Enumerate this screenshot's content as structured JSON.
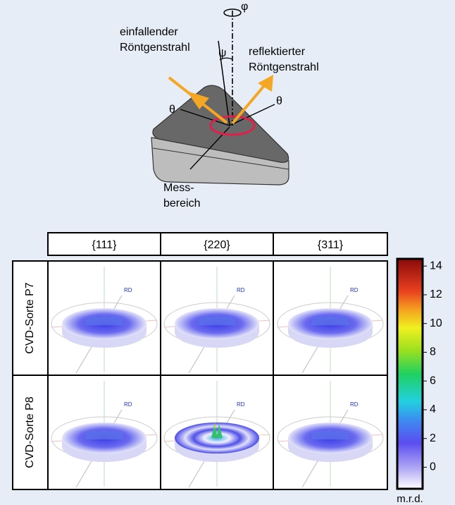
{
  "diagram": {
    "incident_beam": [
      "einfallender",
      "Röntgenstrahl"
    ],
    "reflected_beam": [
      "reflektierter",
      "Röntgenstrahl"
    ],
    "phi": "φ",
    "psi": "ψ",
    "theta_left": "θ",
    "theta_right": "θ",
    "measurement_area": [
      "Mess-",
      "bereich"
    ]
  },
  "grid": {
    "columns": [
      "{111}",
      "{220}",
      "{311}"
    ],
    "rows": [
      "CVD-Sorte P7",
      "CVD-Sorte P8"
    ],
    "direction_label": "RD"
  },
  "colorbar": {
    "lim": [
      -1.5,
      14.5
    ],
    "ticks": [
      0,
      2,
      4,
      6,
      8,
      10,
      12,
      14
    ],
    "unit": "m.r.d."
  }
}
